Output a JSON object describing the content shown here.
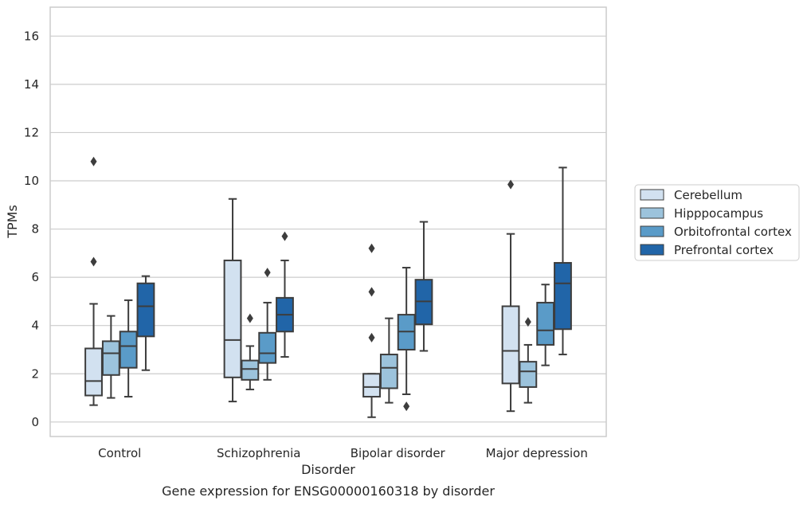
{
  "chart_data": {
    "type": "box",
    "caption": "Gene expression for ENSG00000160318 by disorder",
    "xlabel": "Disorder",
    "ylabel": "TPMs",
    "ylim": [
      -0.6,
      17.2
    ],
    "yticks": [
      0,
      2,
      4,
      6,
      8,
      10,
      12,
      14,
      16
    ],
    "grid": "horizontal",
    "legend_position": "right",
    "categories": [
      "Control",
      "Schizophrenia",
      "Bipolar disorder",
      "Major depression"
    ],
    "series": [
      {
        "name": "Cerebellum",
        "color": "#d2e1f0",
        "boxes": [
          {
            "whislo": 0.7,
            "q1": 1.1,
            "med": 1.7,
            "q3": 3.05,
            "whishi": 4.9,
            "fliers": [
              6.65,
              10.8
            ]
          },
          {
            "whislo": 0.85,
            "q1": 1.85,
            "med": 3.4,
            "q3": 6.7,
            "whishi": 9.25,
            "fliers": []
          },
          {
            "whislo": 0.2,
            "q1": 1.05,
            "med": 1.45,
            "q3": 2.0,
            "whishi": 2.0,
            "fliers": [
              3.5,
              5.4,
              7.2
            ]
          },
          {
            "whislo": 0.45,
            "q1": 1.6,
            "med": 2.95,
            "q3": 4.8,
            "whishi": 7.8,
            "fliers": [
              9.85
            ]
          }
        ]
      },
      {
        "name": "Hipppocampus",
        "color": "#9cc3dc",
        "boxes": [
          {
            "whislo": 1.0,
            "q1": 1.95,
            "med": 2.85,
            "q3": 3.35,
            "whishi": 4.4,
            "fliers": []
          },
          {
            "whislo": 1.35,
            "q1": 1.75,
            "med": 2.2,
            "q3": 2.55,
            "whishi": 3.15,
            "fliers": [
              4.3
            ]
          },
          {
            "whislo": 0.8,
            "q1": 1.4,
            "med": 2.25,
            "q3": 2.8,
            "whishi": 4.3,
            "fliers": []
          },
          {
            "whislo": 0.8,
            "q1": 1.45,
            "med": 2.1,
            "q3": 2.5,
            "whishi": 3.2,
            "fliers": [
              4.15
            ]
          }
        ]
      },
      {
        "name": "Orbitofrontal cortex",
        "color": "#5a9bc8",
        "boxes": [
          {
            "whislo": 1.05,
            "q1": 2.25,
            "med": 3.15,
            "q3": 3.75,
            "whishi": 5.05,
            "fliers": []
          },
          {
            "whislo": 1.75,
            "q1": 2.45,
            "med": 2.85,
            "q3": 3.7,
            "whishi": 4.95,
            "fliers": [
              6.2
            ]
          },
          {
            "whislo": 1.15,
            "q1": 3.0,
            "med": 3.75,
            "q3": 4.45,
            "whishi": 6.4,
            "fliers": [
              0.65
            ]
          },
          {
            "whislo": 2.35,
            "q1": 3.2,
            "med": 3.8,
            "q3": 4.95,
            "whishi": 5.7,
            "fliers": []
          }
        ]
      },
      {
        "name": "Prefrontal cortex",
        "color": "#2165a8",
        "boxes": [
          {
            "whislo": 2.15,
            "q1": 3.55,
            "med": 4.8,
            "q3": 5.75,
            "whishi": 6.05,
            "fliers": []
          },
          {
            "whislo": 2.7,
            "q1": 3.75,
            "med": 4.45,
            "q3": 5.15,
            "whishi": 6.7,
            "fliers": [
              7.7
            ]
          },
          {
            "whislo": 2.95,
            "q1": 4.05,
            "med": 5.0,
            "q3": 5.9,
            "whishi": 8.3,
            "fliers": []
          },
          {
            "whislo": 2.8,
            "q1": 3.85,
            "med": 5.75,
            "q3": 6.6,
            "whishi": 10.55,
            "fliers": []
          }
        ]
      }
    ]
  }
}
